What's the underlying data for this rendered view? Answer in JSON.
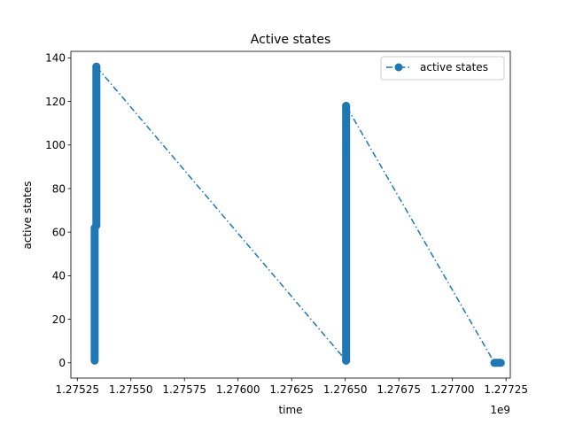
{
  "chart_data": {
    "type": "line",
    "title": "Active states",
    "xlabel": "time",
    "ylabel": "active states",
    "x_offset_label": "1e9",
    "xlim": [
      1.27522,
      1.27727
    ],
    "ylim": [
      -7,
      143
    ],
    "x_ticks": [
      1.27525,
      1.2755,
      1.27575,
      1.276,
      1.27625,
      1.2765,
      1.27675,
      1.277,
      1.27725
    ],
    "x_tick_labels": [
      "1.27525",
      "1.27550",
      "1.27575",
      "1.27600",
      "1.27625",
      "1.27650",
      "1.27675",
      "1.27700",
      "1.27725"
    ],
    "y_ticks": [
      0,
      20,
      40,
      60,
      80,
      100,
      120,
      140
    ],
    "y_tick_labels": [
      "0",
      "20",
      "40",
      "60",
      "80",
      "100",
      "120",
      "140"
    ],
    "legend_position": "top-right",
    "grid": false,
    "series": [
      {
        "name": "active states",
        "color": "#1f77b4",
        "line_style": "dash-dot",
        "marker": "circle",
        "segments": [
          {
            "x_start": 1.275331,
            "x_end": 1.275331,
            "y_start": 1,
            "y_end": 62
          },
          {
            "x_start": 1.275339,
            "x_end": 1.275339,
            "y_start": 63,
            "y_end": 136
          },
          {
            "x_start": 1.276504,
            "x_end": 1.276504,
            "y_start": 1,
            "y_end": 118
          },
          {
            "x_start": 1.277196,
            "x_end": 1.277226,
            "y_start": 0,
            "y_end": 0
          }
        ],
        "points": [
          {
            "x": 1.275339,
            "y": 136
          },
          {
            "x": 1.276504,
            "y": 1
          },
          {
            "x": 1.276504,
            "y": 118
          },
          {
            "x": 1.277196,
            "y": 0
          }
        ]
      }
    ]
  }
}
